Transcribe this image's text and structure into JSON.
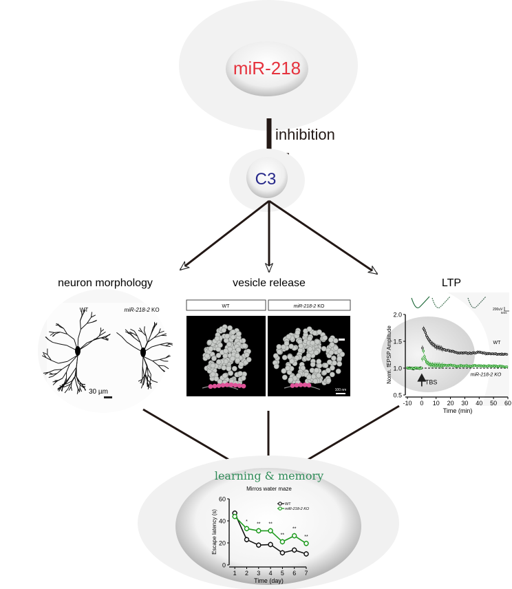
{
  "top": {
    "mirna_label": "miR-218",
    "inhibition_label": "inhibition",
    "target_label": "C3"
  },
  "colors": {
    "mirna": "#e5323d",
    "target": "#27298a",
    "ko_series": "#1f9a1f",
    "wt_series": "#111111",
    "learning_title": "#2e8b57",
    "vesicle_bg": "#000000",
    "docked_vesicle": "#e0559a"
  },
  "panels": {
    "morphology": {
      "title": "neuron morphology",
      "wt_label": "WT",
      "ko_label_italic": "miR-218-2",
      "ko_label_suffix": " KO",
      "scale_label": "30 µm"
    },
    "vesicle": {
      "title": "vesicle release",
      "wt_label": "WT",
      "ko_label_italic": "miR-218-2",
      "ko_label_suffix": " KO",
      "scale_label": "100 nm"
    },
    "ltp": {
      "title": "LTP",
      "trace_scale_v": "200uV",
      "trace_scale_t": "5ms"
    }
  },
  "bottom": {
    "title": "learning & memory"
  },
  "chart_data": [
    {
      "type": "line",
      "title": "",
      "xlabel": "Time (min)",
      "ylabel": "Norm. fEPSP Amplitude",
      "xlim": [
        -10,
        60
      ],
      "ylim": [
        0.5,
        2.0
      ],
      "xticks": [
        "-10",
        "0",
        "10",
        "20",
        "30",
        "40",
        "50",
        "60"
      ],
      "yticks": [
        "0.5",
        "1.0",
        "1.5",
        "2.0"
      ],
      "x": [
        -10,
        -8,
        -6,
        -4,
        -2,
        0,
        1,
        2,
        3,
        5,
        7,
        10,
        15,
        20,
        25,
        30,
        35,
        40,
        45,
        50,
        55,
        60
      ],
      "series": [
        {
          "name": "WT",
          "values": [
            1.0,
            1.0,
            0.99,
            1.0,
            1.0,
            1.0,
            1.75,
            1.7,
            1.62,
            1.52,
            1.45,
            1.4,
            1.35,
            1.32,
            1.28,
            1.28,
            1.28,
            1.3,
            1.27,
            1.27,
            1.26,
            1.25
          ]
        },
        {
          "name": "miR-218-2 KO",
          "values": [
            1.0,
            1.0,
            1.0,
            1.0,
            1.0,
            1.0,
            1.35,
            1.2,
            1.12,
            1.08,
            1.06,
            1.05,
            1.05,
            1.05,
            1.04,
            1.05,
            1.04,
            1.05,
            1.04,
            1.04,
            1.03,
            1.03
          ]
        }
      ],
      "baseline": 1.0,
      "annotation": "TBS",
      "annotation_x": 0
    },
    {
      "type": "line",
      "title": "Mirros water maze",
      "xlabel": "Time (day)",
      "ylabel": "Escape latency (s)",
      "xlim": [
        1,
        7
      ],
      "ylim": [
        0,
        60
      ],
      "categories": [
        "1",
        "2",
        "3",
        "4",
        "5",
        "6",
        "7"
      ],
      "yticks": [
        "0",
        "20",
        "40",
        "60"
      ],
      "series": [
        {
          "name": "WT",
          "values": [
            47,
            23,
            18,
            18.5,
            11,
            13.5,
            10
          ]
        },
        {
          "name": "miR-218-2 KO",
          "values": [
            44,
            33,
            31,
            31,
            21,
            26.5,
            19.5
          ]
        }
      ],
      "significance": [
        "",
        "*",
        "**",
        "**",
        "**",
        "**",
        "**"
      ],
      "legend": "top-right"
    }
  ]
}
